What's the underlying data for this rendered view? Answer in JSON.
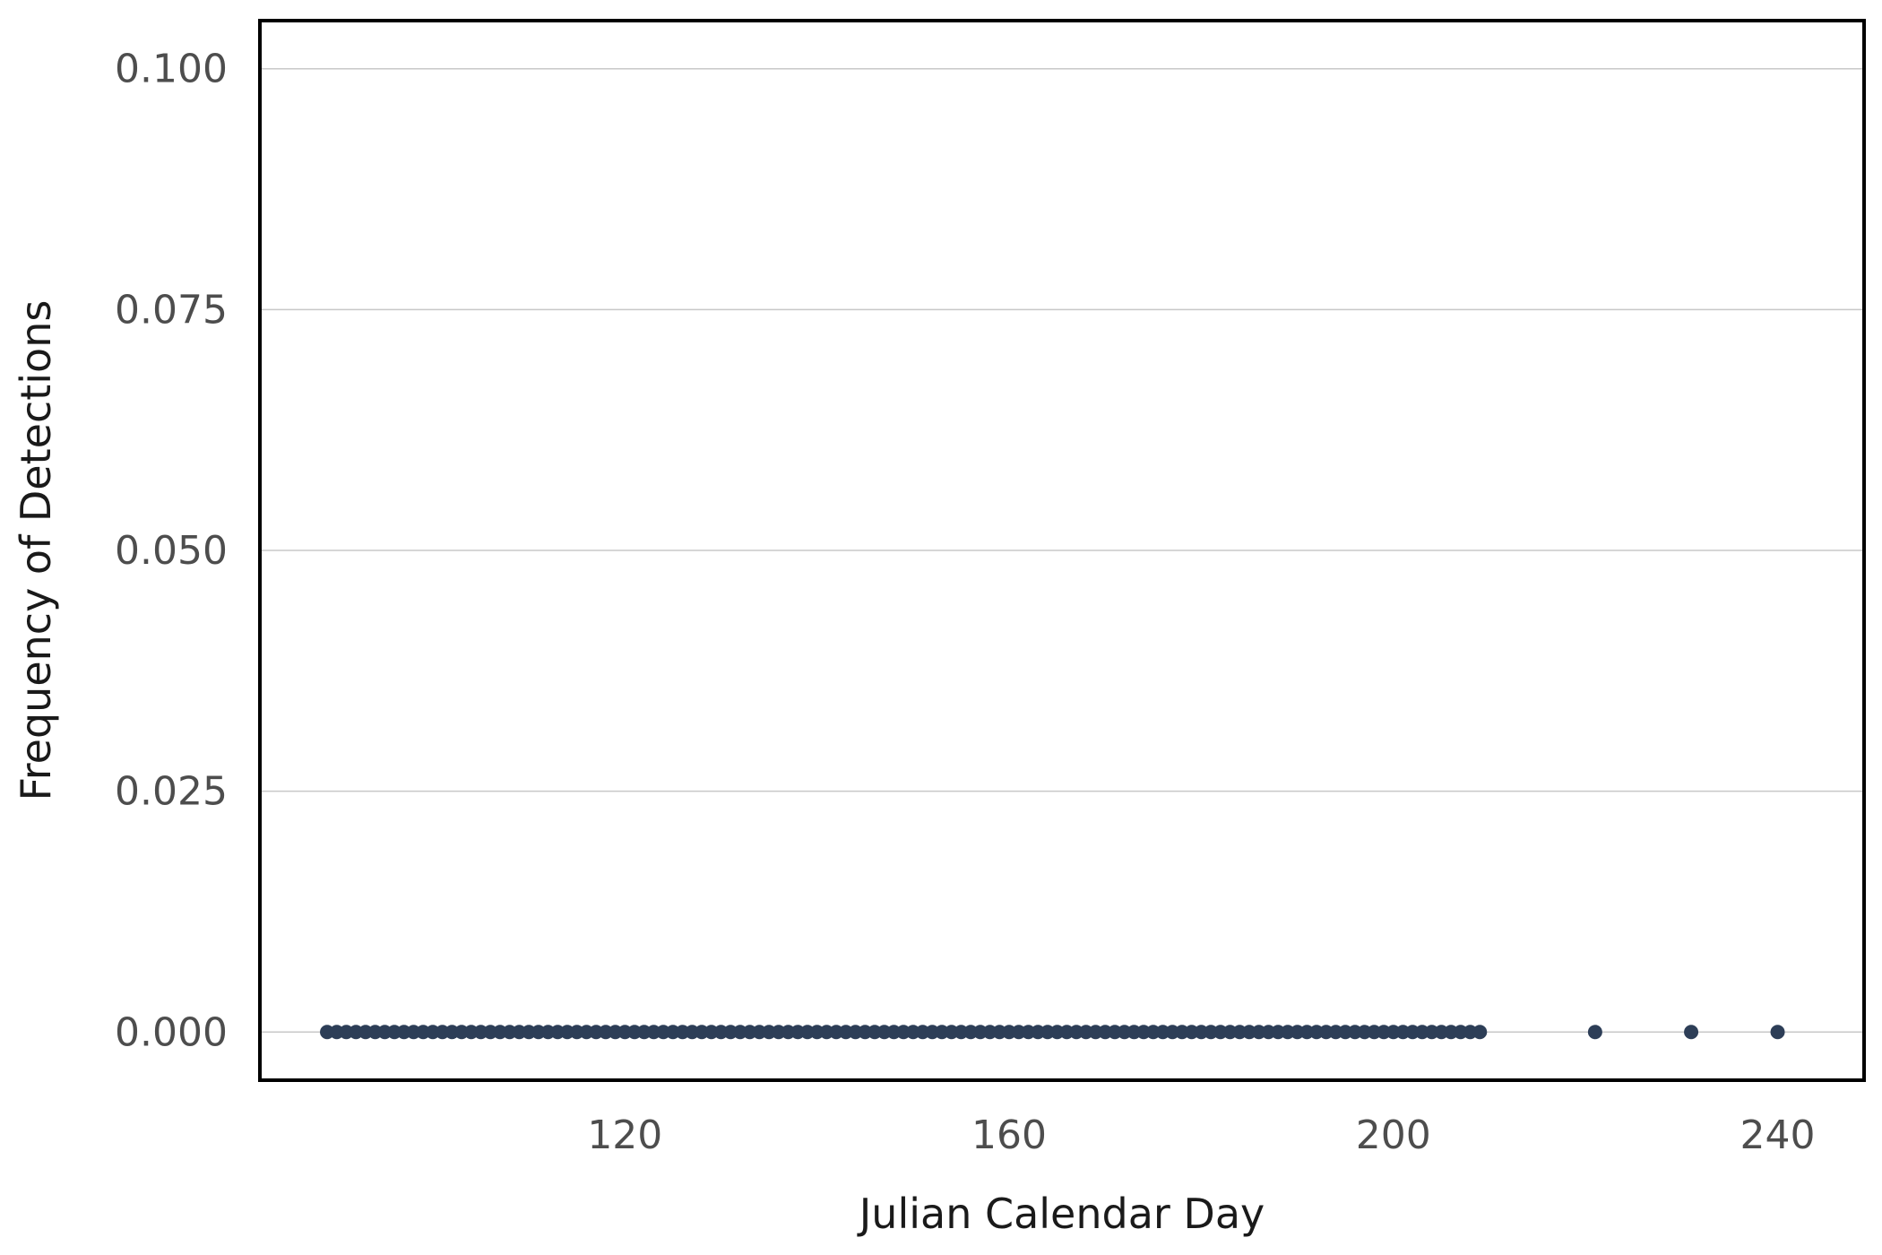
{
  "chart_data": {
    "type": "scatter",
    "title": "",
    "xlabel": "Julian Calendar Day",
    "ylabel": "Frequency of Detections",
    "xlim": [
      82,
      249
    ],
    "ylim": [
      -0.005,
      0.105
    ],
    "x_ticks": [
      120,
      160,
      200,
      240
    ],
    "y_ticks": [
      0.0,
      0.025,
      0.05,
      0.075,
      0.1
    ],
    "x_tick_labels": [
      "120",
      "160",
      "200",
      "240"
    ],
    "y_tick_labels": [
      "0.000",
      "0.025",
      "0.050",
      "0.075",
      "0.100"
    ],
    "grid": "horizontal",
    "legend": "none",
    "point_color": "#2d3e57",
    "series": [
      {
        "x": [
          89,
          90,
          91,
          92,
          93,
          94,
          95,
          96,
          97,
          98,
          99,
          100,
          101,
          102,
          103,
          104,
          105,
          106,
          107,
          108,
          109,
          110,
          111,
          112,
          113,
          114,
          115,
          116,
          117,
          118,
          119,
          120,
          121,
          122,
          123,
          124,
          125,
          126,
          127,
          128,
          129,
          130,
          131,
          132,
          133,
          134,
          135,
          136,
          137,
          138,
          139,
          140,
          141,
          142,
          143,
          144,
          145,
          146,
          147,
          148,
          149,
          150,
          151,
          152,
          153,
          154,
          155,
          156,
          157,
          158,
          159,
          160,
          161,
          162,
          163,
          164,
          165,
          166,
          167,
          168,
          169,
          170,
          171,
          172,
          173,
          174,
          175,
          176,
          177,
          178,
          179,
          180,
          181,
          182,
          183,
          184,
          185,
          186,
          187,
          188,
          189,
          190,
          191,
          192,
          193,
          194,
          195,
          196,
          197,
          198,
          199,
          200,
          201,
          202,
          203,
          204,
          205,
          206,
          207,
          208,
          209,
          221,
          231,
          240
        ],
        "y": [
          0,
          0,
          0,
          0,
          0,
          0,
          0,
          0,
          0,
          0,
          0,
          0,
          0,
          0,
          0,
          0,
          0,
          0,
          0,
          0,
          0,
          0,
          0,
          0,
          0,
          0,
          0,
          0,
          0,
          0,
          0,
          0,
          0,
          0,
          0,
          0,
          0,
          0,
          0,
          0,
          0,
          0,
          0,
          0,
          0,
          0,
          0,
          0,
          0,
          0,
          0,
          0,
          0,
          0,
          0,
          0,
          0,
          0,
          0,
          0,
          0,
          0,
          0,
          0,
          0,
          0,
          0,
          0,
          0,
          0,
          0,
          0,
          0,
          0,
          0,
          0,
          0,
          0,
          0,
          0,
          0,
          0,
          0,
          0,
          0,
          0,
          0,
          0,
          0,
          0,
          0,
          0,
          0,
          0,
          0,
          0,
          0,
          0,
          0,
          0,
          0,
          0,
          0,
          0,
          0,
          0,
          0,
          0,
          0,
          0,
          0,
          0,
          0,
          0,
          0,
          0,
          0,
          0,
          0,
          0,
          0,
          0,
          0,
          0
        ]
      }
    ]
  }
}
